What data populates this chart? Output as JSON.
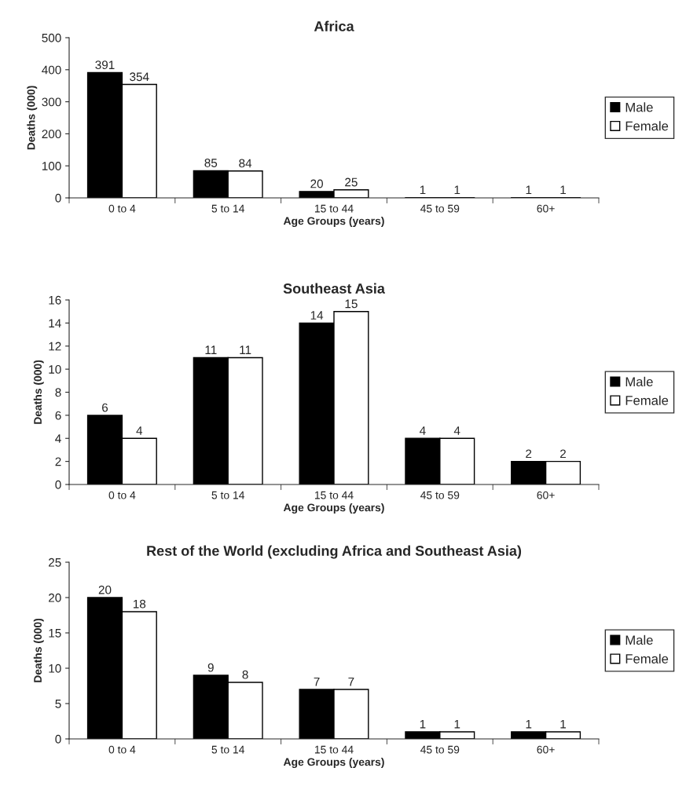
{
  "chart_data": [
    {
      "type": "bar",
      "title": "Africa",
      "xlabel": "Age Groups (years)",
      "ylabel": "Deaths (000)",
      "categories": [
        "0 to 4",
        "5 to 14",
        "15 to 44",
        "45 to 59",
        "60+"
      ],
      "series": [
        {
          "name": "Male",
          "color": "#000000",
          "values": [
            391,
            85,
            20,
            1,
            1
          ]
        },
        {
          "name": "Female",
          "color": "#ffffff",
          "values": [
            354,
            84,
            25,
            1,
            1
          ]
        }
      ],
      "ylim": [
        0,
        500
      ],
      "yticks": [
        0,
        100,
        200,
        300,
        400,
        500
      ],
      "data_labels": true,
      "legend": "right",
      "grid": false
    },
    {
      "type": "bar",
      "title": "Southeast Asia",
      "xlabel": "Age Groups (years)",
      "ylabel": "Deaths (000)",
      "categories": [
        "0 to 4",
        "5 to 14",
        "15 to 44",
        "45 to 59",
        "60+"
      ],
      "series": [
        {
          "name": "Male",
          "color": "#000000",
          "values": [
            6,
            11,
            14,
            4,
            2
          ]
        },
        {
          "name": "Female",
          "color": "#ffffff",
          "values": [
            4,
            11,
            15,
            4,
            2
          ]
        }
      ],
      "ylim": [
        0,
        16
      ],
      "yticks": [
        0,
        2,
        4,
        6,
        8,
        10,
        12,
        14,
        16
      ],
      "data_labels": true,
      "legend": "right",
      "grid": false
    },
    {
      "type": "bar",
      "title": "Rest of the World (excluding Africa and Southeast Asia)",
      "xlabel": "Age Groups (years)",
      "ylabel": "Deaths (000)",
      "categories": [
        "0 to 4",
        "5 to 14",
        "15 to 44",
        "45 to 59",
        "60+"
      ],
      "series": [
        {
          "name": "Male",
          "color": "#000000",
          "values": [
            20,
            9,
            7,
            1,
            1
          ]
        },
        {
          "name": "Female",
          "color": "#ffffff",
          "values": [
            18,
            8,
            7,
            1,
            1
          ]
        }
      ],
      "ylim": [
        0,
        25
      ],
      "yticks": [
        0,
        5,
        10,
        15,
        20,
        25
      ],
      "data_labels": true,
      "legend": "right",
      "grid": false
    }
  ]
}
